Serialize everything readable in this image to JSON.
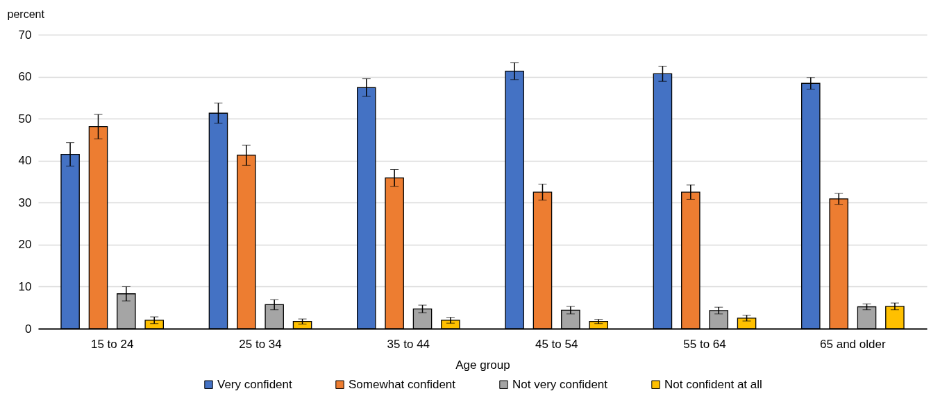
{
  "chart_data": {
    "type": "bar",
    "xlabel": "Age group",
    "ylabel": "percent",
    "categories": [
      "15 to 24",
      "25 to 34",
      "35 to 44",
      "45 to 54",
      "55 to 64",
      "65 and older"
    ],
    "series": [
      {
        "name": "Very confident",
        "color": "#4472c4",
        "values": [
          41.5,
          51.3,
          57.4,
          61.3,
          60.7,
          58.4
        ],
        "errors": [
          2.8,
          2.4,
          2.1,
          2.0,
          1.8,
          1.4
        ]
      },
      {
        "name": "Somewhat confident",
        "color": "#ed7d31",
        "values": [
          48.1,
          41.3,
          35.9,
          32.5,
          32.5,
          30.9
        ],
        "errors": [
          2.9,
          2.4,
          2.0,
          1.9,
          1.7,
          1.3
        ]
      },
      {
        "name": "Not very confident",
        "color": "#a5a5a5",
        "values": [
          8.3,
          5.7,
          4.7,
          4.4,
          4.3,
          5.2
        ],
        "errors": [
          1.7,
          1.2,
          0.9,
          0.9,
          0.8,
          0.7
        ]
      },
      {
        "name": "Not confident at all",
        "color": "#ffc000",
        "values": [
          2.0,
          1.7,
          2.0,
          1.7,
          2.5,
          5.3
        ],
        "errors": [
          0.8,
          0.6,
          0.7,
          0.5,
          0.7,
          0.8
        ]
      }
    ],
    "ylim": [
      0,
      70
    ],
    "yticks": [
      0,
      10,
      20,
      30,
      40,
      50,
      60,
      70
    ],
    "grid": "y",
    "legend": "bottom"
  }
}
